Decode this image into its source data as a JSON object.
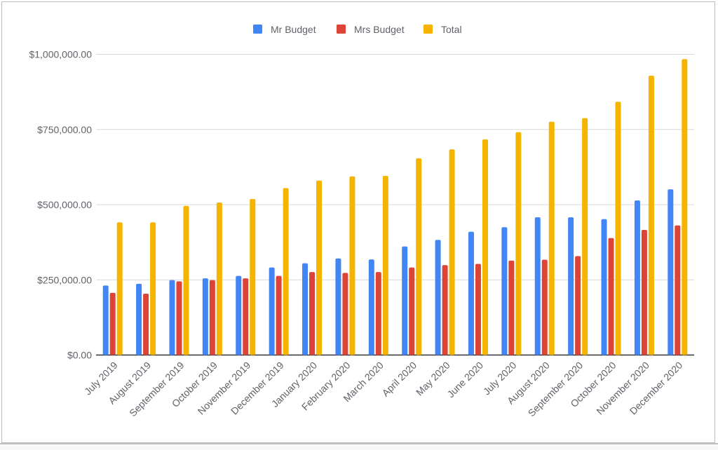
{
  "chart_data": {
    "type": "bar",
    "title": "",
    "xlabel": "",
    "ylabel": "",
    "ylim": [
      0,
      1000000
    ],
    "yticks": [
      "$0.00",
      "$250,000.00",
      "$500,000.00",
      "$750,000.00",
      "$1,000,000.00"
    ],
    "ytick_values": [
      0,
      250000,
      500000,
      750000,
      1000000
    ],
    "grid": true,
    "legend_position": "top",
    "categories": [
      "July 2019",
      "August 2019",
      "September 2019",
      "October 2019",
      "November 2019",
      "December 2019",
      "January 2020",
      "February 2020",
      "March 2020",
      "April 2020",
      "May 2020",
      "June 2020",
      "July 2020",
      "August 2020",
      "September 2020",
      "October 2020",
      "November 2020",
      "December 2020"
    ],
    "series": [
      {
        "name": "Mr Budget",
        "color": "#4285F4",
        "values": [
          231000,
          237000,
          249000,
          255000,
          263000,
          291000,
          305000,
          321000,
          318000,
          361000,
          383000,
          410000,
          425000,
          458000,
          458000,
          452000,
          514000,
          551000
        ]
      },
      {
        "name": "Mrs Budget",
        "color": "#DB4437",
        "values": [
          207000,
          204000,
          245000,
          249000,
          255000,
          263000,
          276000,
          273000,
          276000,
          291000,
          299000,
          303000,
          314000,
          317000,
          329000,
          389000,
          416000,
          431000
        ]
      },
      {
        "name": "Total",
        "color": "#F4B400",
        "values": [
          441000,
          441000,
          496000,
          507000,
          519000,
          555000,
          580000,
          594000,
          596000,
          654000,
          684000,
          717000,
          741000,
          776000,
          788000,
          842000,
          929000,
          984000
        ]
      }
    ]
  }
}
